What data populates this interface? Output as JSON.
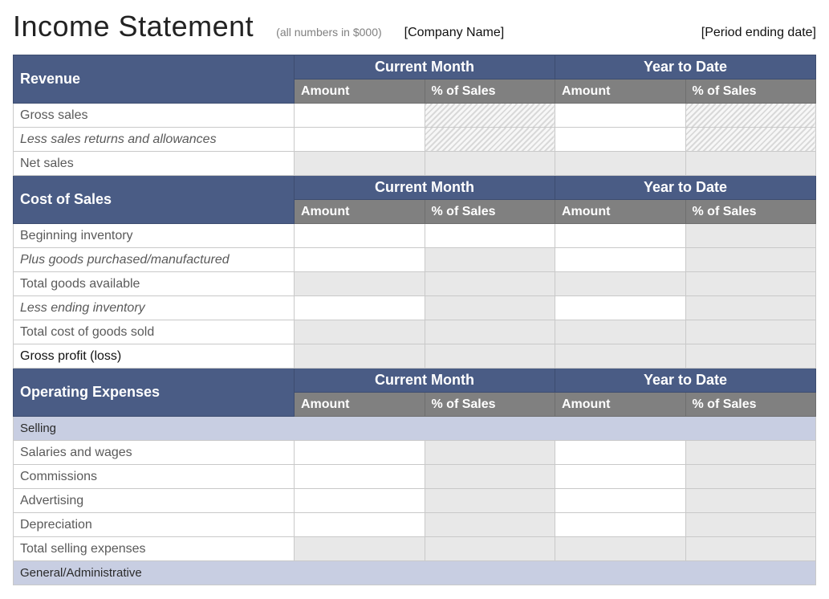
{
  "header": {
    "title": "Income Statement",
    "subtitle": "(all numbers in $000)",
    "company": "[Company Name]",
    "period": "[Period ending date]"
  },
  "colors": {
    "section_bg": "#4a5c85",
    "subheader_bg": "#808080",
    "band_bg": "#c8cee2",
    "gray_cell": "#e8e8e8",
    "border": "#c9c9c9"
  },
  "column_labels": {
    "group_current": "Current Month",
    "group_ytd": "Year to Date",
    "amount": "Amount",
    "pct": "% of Sales"
  },
  "sections": {
    "revenue": {
      "title": "Revenue",
      "rows": [
        {
          "label": "Gross sales",
          "style": "normal",
          "cells": [
            "white",
            "hatch",
            "white",
            "hatch"
          ]
        },
        {
          "label": "Less sales returns and allowances",
          "style": "italic",
          "cells": [
            "white",
            "hatch",
            "white",
            "hatch"
          ]
        },
        {
          "label": "Net sales",
          "style": "normal",
          "cells": [
            "gray",
            "gray",
            "gray",
            "gray"
          ]
        }
      ]
    },
    "cost_of_sales": {
      "title": "Cost of Sales",
      "rows": [
        {
          "label": "Beginning inventory",
          "style": "normal",
          "cells": [
            "white",
            "white",
            "white",
            "gray"
          ]
        },
        {
          "label": "Plus goods purchased/manufactured",
          "style": "italic",
          "cells": [
            "white",
            "gray",
            "white",
            "gray"
          ]
        },
        {
          "label": "Total goods available",
          "style": "normal",
          "cells": [
            "gray",
            "gray",
            "gray",
            "gray"
          ]
        },
        {
          "label": "Less ending inventory",
          "style": "italic",
          "cells": [
            "white",
            "gray",
            "white",
            "gray"
          ]
        },
        {
          "label": "Total cost of goods sold",
          "style": "normal",
          "cells": [
            "gray",
            "gray",
            "gray",
            "gray"
          ]
        },
        {
          "label": "Gross profit (loss)",
          "style": "bold",
          "cells": [
            "gray",
            "gray",
            "gray",
            "gray"
          ]
        }
      ]
    },
    "operating_expenses": {
      "title": "Operating Expenses",
      "groups": [
        {
          "band": "Selling",
          "rows": [
            {
              "label": "Salaries and wages",
              "style": "normal",
              "cells": [
                "white",
                "gray",
                "white",
                "gray"
              ]
            },
            {
              "label": "Commissions",
              "style": "normal",
              "cells": [
                "white",
                "gray",
                "white",
                "gray"
              ]
            },
            {
              "label": "Advertising",
              "style": "normal",
              "cells": [
                "white",
                "gray",
                "white",
                "gray"
              ]
            },
            {
              "label": "Depreciation",
              "style": "normal",
              "cells": [
                "white",
                "gray",
                "white",
                "gray"
              ]
            },
            {
              "label": "Total selling expenses",
              "style": "normal",
              "cells": [
                "gray",
                "gray",
                "gray",
                "gray"
              ]
            }
          ]
        },
        {
          "band": "General/Administrative",
          "rows": []
        }
      ]
    }
  }
}
